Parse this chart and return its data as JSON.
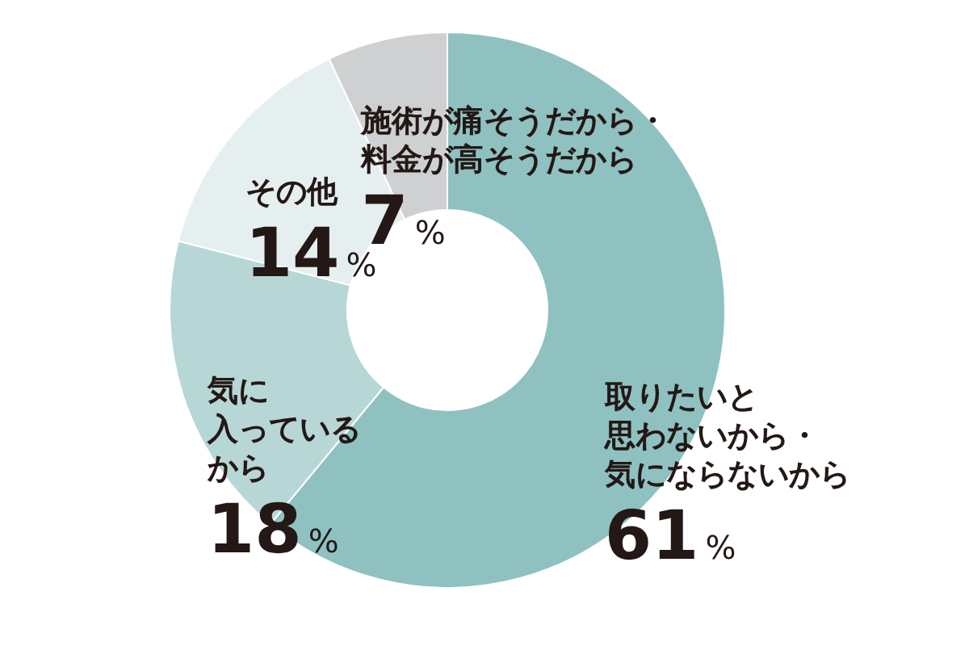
{
  "chart_data": {
    "type": "donut",
    "categories": [
      "取りたいと思わないから・気にならないから",
      "気に入っているから",
      "その他",
      "施術が痛そうだから・料金が高そうだから"
    ],
    "values": [
      61,
      18,
      14,
      7
    ],
    "value_labels": [
      "61%",
      "18%",
      "14%",
      "7%"
    ],
    "colors": [
      "#8fc1c1",
      "#b7d7d6",
      "#e6efef",
      "#cfd0d2"
    ]
  }
}
